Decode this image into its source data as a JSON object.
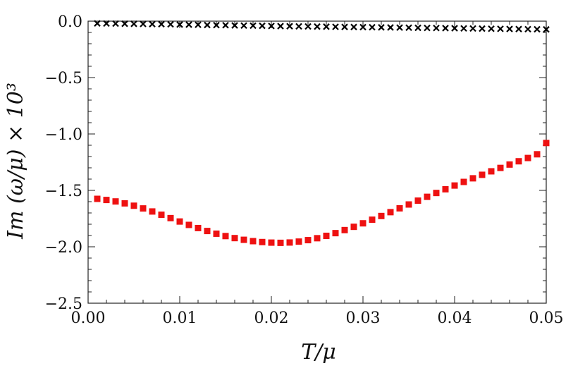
{
  "chart_data": {
    "type": "scatter",
    "xlabel": "T/μ",
    "ylabel": "Im (ω/μ) × 10³",
    "xlim": [
      0.0,
      0.05
    ],
    "ylim": [
      -2.5,
      0.0
    ],
    "xticks": [
      "0.00",
      "0.01",
      "0.02",
      "0.03",
      "0.04",
      "0.05"
    ],
    "yticks": [
      "0.0",
      "−0.5",
      "−1.0",
      "−1.5",
      "−2.0",
      "−2.5"
    ],
    "xtick_values": [
      0.0,
      0.01,
      0.02,
      0.03,
      0.04,
      0.05
    ],
    "ytick_values": [
      0.0,
      -0.5,
      -1.0,
      -1.5,
      -2.0,
      -2.5
    ],
    "grid": false,
    "series": [
      {
        "marker": "cross",
        "color": "#000000",
        "x": [
          0.001,
          0.002,
          0.003,
          0.004,
          0.005,
          0.006,
          0.007,
          0.008,
          0.009,
          0.01,
          0.011,
          0.012,
          0.013,
          0.014,
          0.015,
          0.016,
          0.017,
          0.018,
          0.019,
          0.02,
          0.021,
          0.022,
          0.023,
          0.024,
          0.025,
          0.026,
          0.027,
          0.028,
          0.029,
          0.03,
          0.031,
          0.032,
          0.033,
          0.034,
          0.035,
          0.036,
          0.037,
          0.038,
          0.039,
          0.04,
          0.041,
          0.042,
          0.043,
          0.044,
          0.045,
          0.046,
          0.047,
          0.048,
          0.049,
          0.05
        ],
        "y": [
          -0.02,
          -0.021,
          -0.022,
          -0.023,
          -0.024,
          -0.025,
          -0.026,
          -0.027,
          -0.028,
          -0.03,
          -0.031,
          -0.032,
          -0.034,
          -0.035,
          -0.036,
          -0.038,
          -0.039,
          -0.04,
          -0.041,
          -0.043,
          -0.044,
          -0.045,
          -0.046,
          -0.047,
          -0.048,
          -0.049,
          -0.05,
          -0.051,
          -0.052,
          -0.053,
          -0.054,
          -0.055,
          -0.056,
          -0.057,
          -0.058,
          -0.059,
          -0.06,
          -0.061,
          -0.062,
          -0.063,
          -0.064,
          -0.065,
          -0.066,
          -0.067,
          -0.068,
          -0.069,
          -0.07,
          -0.071,
          -0.072,
          -0.073
        ]
      },
      {
        "marker": "square",
        "color": "#ee1111",
        "x": [
          0.001,
          0.002,
          0.003,
          0.004,
          0.005,
          0.006,
          0.007,
          0.008,
          0.009,
          0.01,
          0.011,
          0.012,
          0.013,
          0.014,
          0.015,
          0.016,
          0.017,
          0.018,
          0.019,
          0.02,
          0.021,
          0.022,
          0.023,
          0.024,
          0.025,
          0.026,
          0.027,
          0.028,
          0.029,
          0.03,
          0.031,
          0.032,
          0.033,
          0.034,
          0.035,
          0.036,
          0.037,
          0.038,
          0.039,
          0.04,
          0.041,
          0.042,
          0.043,
          0.044,
          0.045,
          0.046,
          0.047,
          0.048,
          0.049,
          0.05
        ],
        "y": [
          -1.575,
          -1.585,
          -1.598,
          -1.615,
          -1.636,
          -1.66,
          -1.687,
          -1.716,
          -1.746,
          -1.776,
          -1.806,
          -1.834,
          -1.86,
          -1.884,
          -1.905,
          -1.923,
          -1.938,
          -1.95,
          -1.958,
          -1.963,
          -1.965,
          -1.962,
          -1.954,
          -1.941,
          -1.924,
          -1.903,
          -1.879,
          -1.852,
          -1.823,
          -1.792,
          -1.76,
          -1.727,
          -1.693,
          -1.659,
          -1.625,
          -1.591,
          -1.557,
          -1.523,
          -1.49,
          -1.457,
          -1.425,
          -1.393,
          -1.362,
          -1.331,
          -1.301,
          -1.271,
          -1.242,
          -1.213,
          -1.18,
          -1.08
        ]
      }
    ]
  }
}
